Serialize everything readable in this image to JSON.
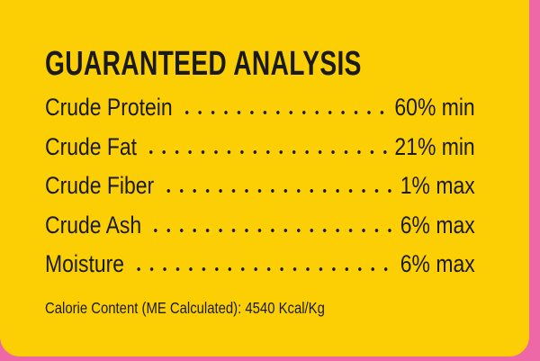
{
  "title": "GUARANTEED ANALYSIS",
  "rows": [
    {
      "label": "Crude Protein",
      "value": "60% min"
    },
    {
      "label": "Crude Fat",
      "value": "21% min"
    },
    {
      "label": "Crude Fiber",
      "value": "1% max"
    },
    {
      "label": "Crude Ash",
      "value": "6% max"
    },
    {
      "label": "Moisture",
      "value": "6% max"
    }
  ],
  "footer": "Calorie Content (ME Calculated): 4540 Kcal/Kg"
}
